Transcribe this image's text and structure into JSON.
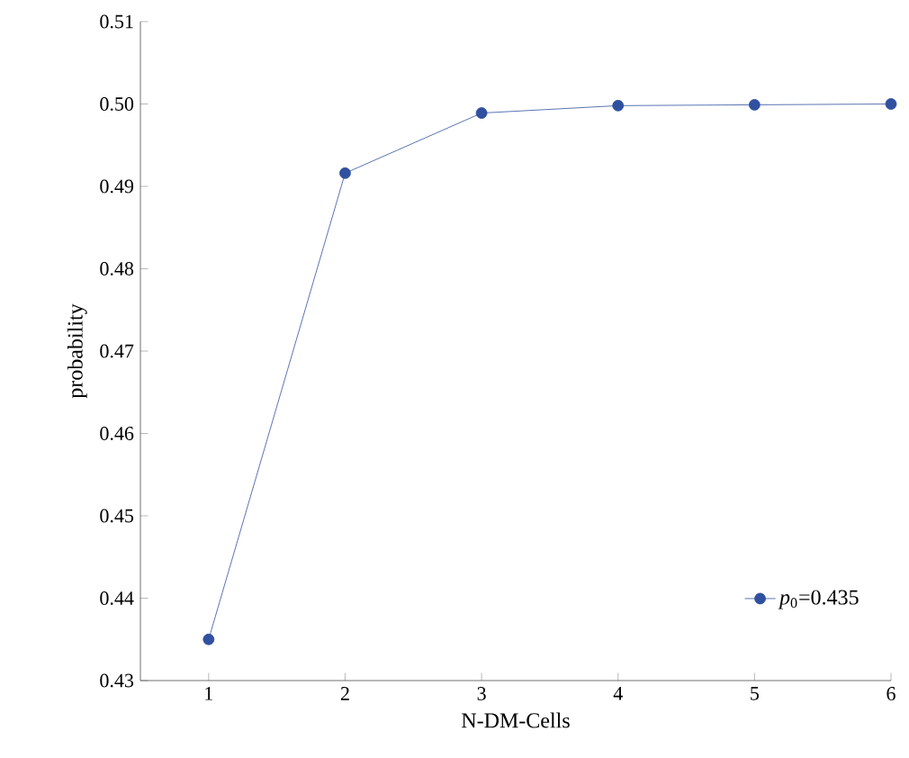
{
  "chart_data": {
    "type": "line",
    "xlabel": "N-DM-Cells",
    "ylabel": "probability",
    "x": [
      1,
      2,
      3,
      4,
      5,
      6
    ],
    "series": [
      {
        "name": "*p*$_{0}$=0.435",
        "color": "#3050a0",
        "values": [
          0.435,
          0.4916,
          0.4989,
          0.4998,
          0.4999,
          0.5
        ]
      }
    ],
    "xlim": [
      0.5,
      6
    ],
    "ylim": [
      0.43,
      0.51
    ],
    "xticks": [
      1,
      2,
      3,
      4,
      5,
      6
    ],
    "yticks": [
      {
        "value": 0.43,
        "label": "0.43"
      },
      {
        "value": 0.44,
        "label": "0.44"
      },
      {
        "value": 0.45,
        "label": "0.45"
      },
      {
        "value": 0.46,
        "label": "0.46"
      },
      {
        "value": 0.47,
        "label": "0.47"
      },
      {
        "value": 0.48,
        "label": "0.48"
      },
      {
        "value": 0.49,
        "label": "0.49"
      },
      {
        "value": 0.5,
        "label": "0.50"
      },
      {
        "value": 0.51,
        "label": "0.51"
      }
    ],
    "marker": "circle",
    "line_style": "solid",
    "legend": "bottom right",
    "grid": false
  }
}
